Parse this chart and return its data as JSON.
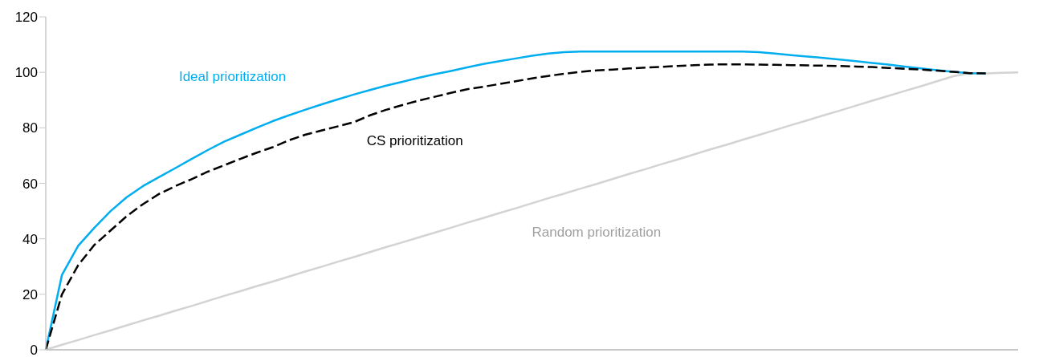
{
  "chart_data": {
    "type": "line",
    "categories": [
      null,
      null,
      null,
      null,
      null,
      null,
      null,
      null,
      null,
      null,
      null,
      null,
      null,
      null,
      null,
      null,
      null,
      null,
      null,
      null,
      null,
      null,
      null,
      null,
      null,
      null,
      null,
      null,
      null,
      null,
      null,
      null,
      null,
      null,
      null,
      null,
      null,
      null,
      null,
      null,
      null,
      null,
      null,
      null,
      null,
      null,
      null,
      null,
      null,
      null,
      null,
      null,
      null,
      null,
      null,
      null,
      null,
      null,
      null,
      null,
      null
    ],
    "series": [
      {
        "name": "Ideal prioritization",
        "color": "#00aeef",
        "line_style": "solid",
        "values": [
          0,
          27,
          37.5,
          44,
          50,
          55,
          59,
          62.3,
          65.5,
          68.8,
          72,
          75,
          77.5,
          80,
          82.4,
          84.5,
          86.5,
          88.4,
          90.2,
          92,
          93.6,
          95.2,
          96.6,
          98,
          99.3,
          100.5,
          101.8,
          103,
          104,
          105,
          106,
          106.8,
          107.3,
          107.5,
          107.5,
          107.5,
          107.5,
          107.5,
          107.5,
          107.5,
          107.5,
          107.5,
          107.5,
          107.5,
          107.3,
          106.8,
          106.2,
          105.7,
          105.2,
          104.6,
          104,
          103.4,
          102.8,
          102.1,
          101.4,
          100.8,
          100.2,
          99.7,
          99.6,
          null,
          null
        ]
      },
      {
        "name": "CS prioritization",
        "color": "#000000",
        "line_style": "dashed",
        "values": [
          0,
          20,
          30.5,
          37.8,
          43,
          48.2,
          52.5,
          56.2,
          59,
          61.5,
          64.2,
          66.5,
          68.8,
          71,
          73,
          75.5,
          77.5,
          79,
          80.5,
          82,
          84.5,
          86.5,
          88.2,
          89.8,
          91.2,
          92.6,
          93.9,
          94.8,
          95.8,
          96.8,
          97.8,
          98.7,
          99.5,
          100.2,
          100.7,
          101,
          101.4,
          101.7,
          102,
          102.3,
          102.6,
          102.8,
          102.9,
          102.9,
          102.8,
          102.7,
          102.6,
          102.5,
          102.4,
          102.3,
          102.1,
          101.9,
          101.6,
          101.3,
          101,
          100.6,
          100.2,
          99.7,
          99.6,
          null,
          null
        ]
      },
      {
        "name": "Random prioritization",
        "color": "#d3d3d3",
        "line_style": "solid",
        "values": [
          0,
          1.8,
          3.5,
          5.3,
          7,
          8.8,
          10.6,
          12.3,
          14.1,
          15.8,
          17.6,
          19.4,
          21.1,
          22.9,
          24.6,
          26.4,
          28.2,
          29.9,
          31.7,
          33.4,
          35.2,
          37,
          38.7,
          40.5,
          42.2,
          44,
          45.8,
          47.5,
          49.3,
          51,
          52.8,
          54.6,
          56.3,
          58.1,
          59.8,
          61.6,
          63.4,
          65.1,
          66.9,
          68.6,
          70.4,
          72.2,
          73.9,
          75.7,
          77.4,
          79.2,
          81,
          82.7,
          84.5,
          86.2,
          88,
          89.8,
          91.5,
          93.3,
          95,
          96.8,
          98.6,
          99.7,
          99.6,
          99.8,
          100
        ]
      }
    ],
    "ylim": [
      0,
      120
    ],
    "yticks": [
      0,
      20,
      40,
      60,
      80,
      100,
      120
    ],
    "marker": "none",
    "tick_labels": "y"
  }
}
